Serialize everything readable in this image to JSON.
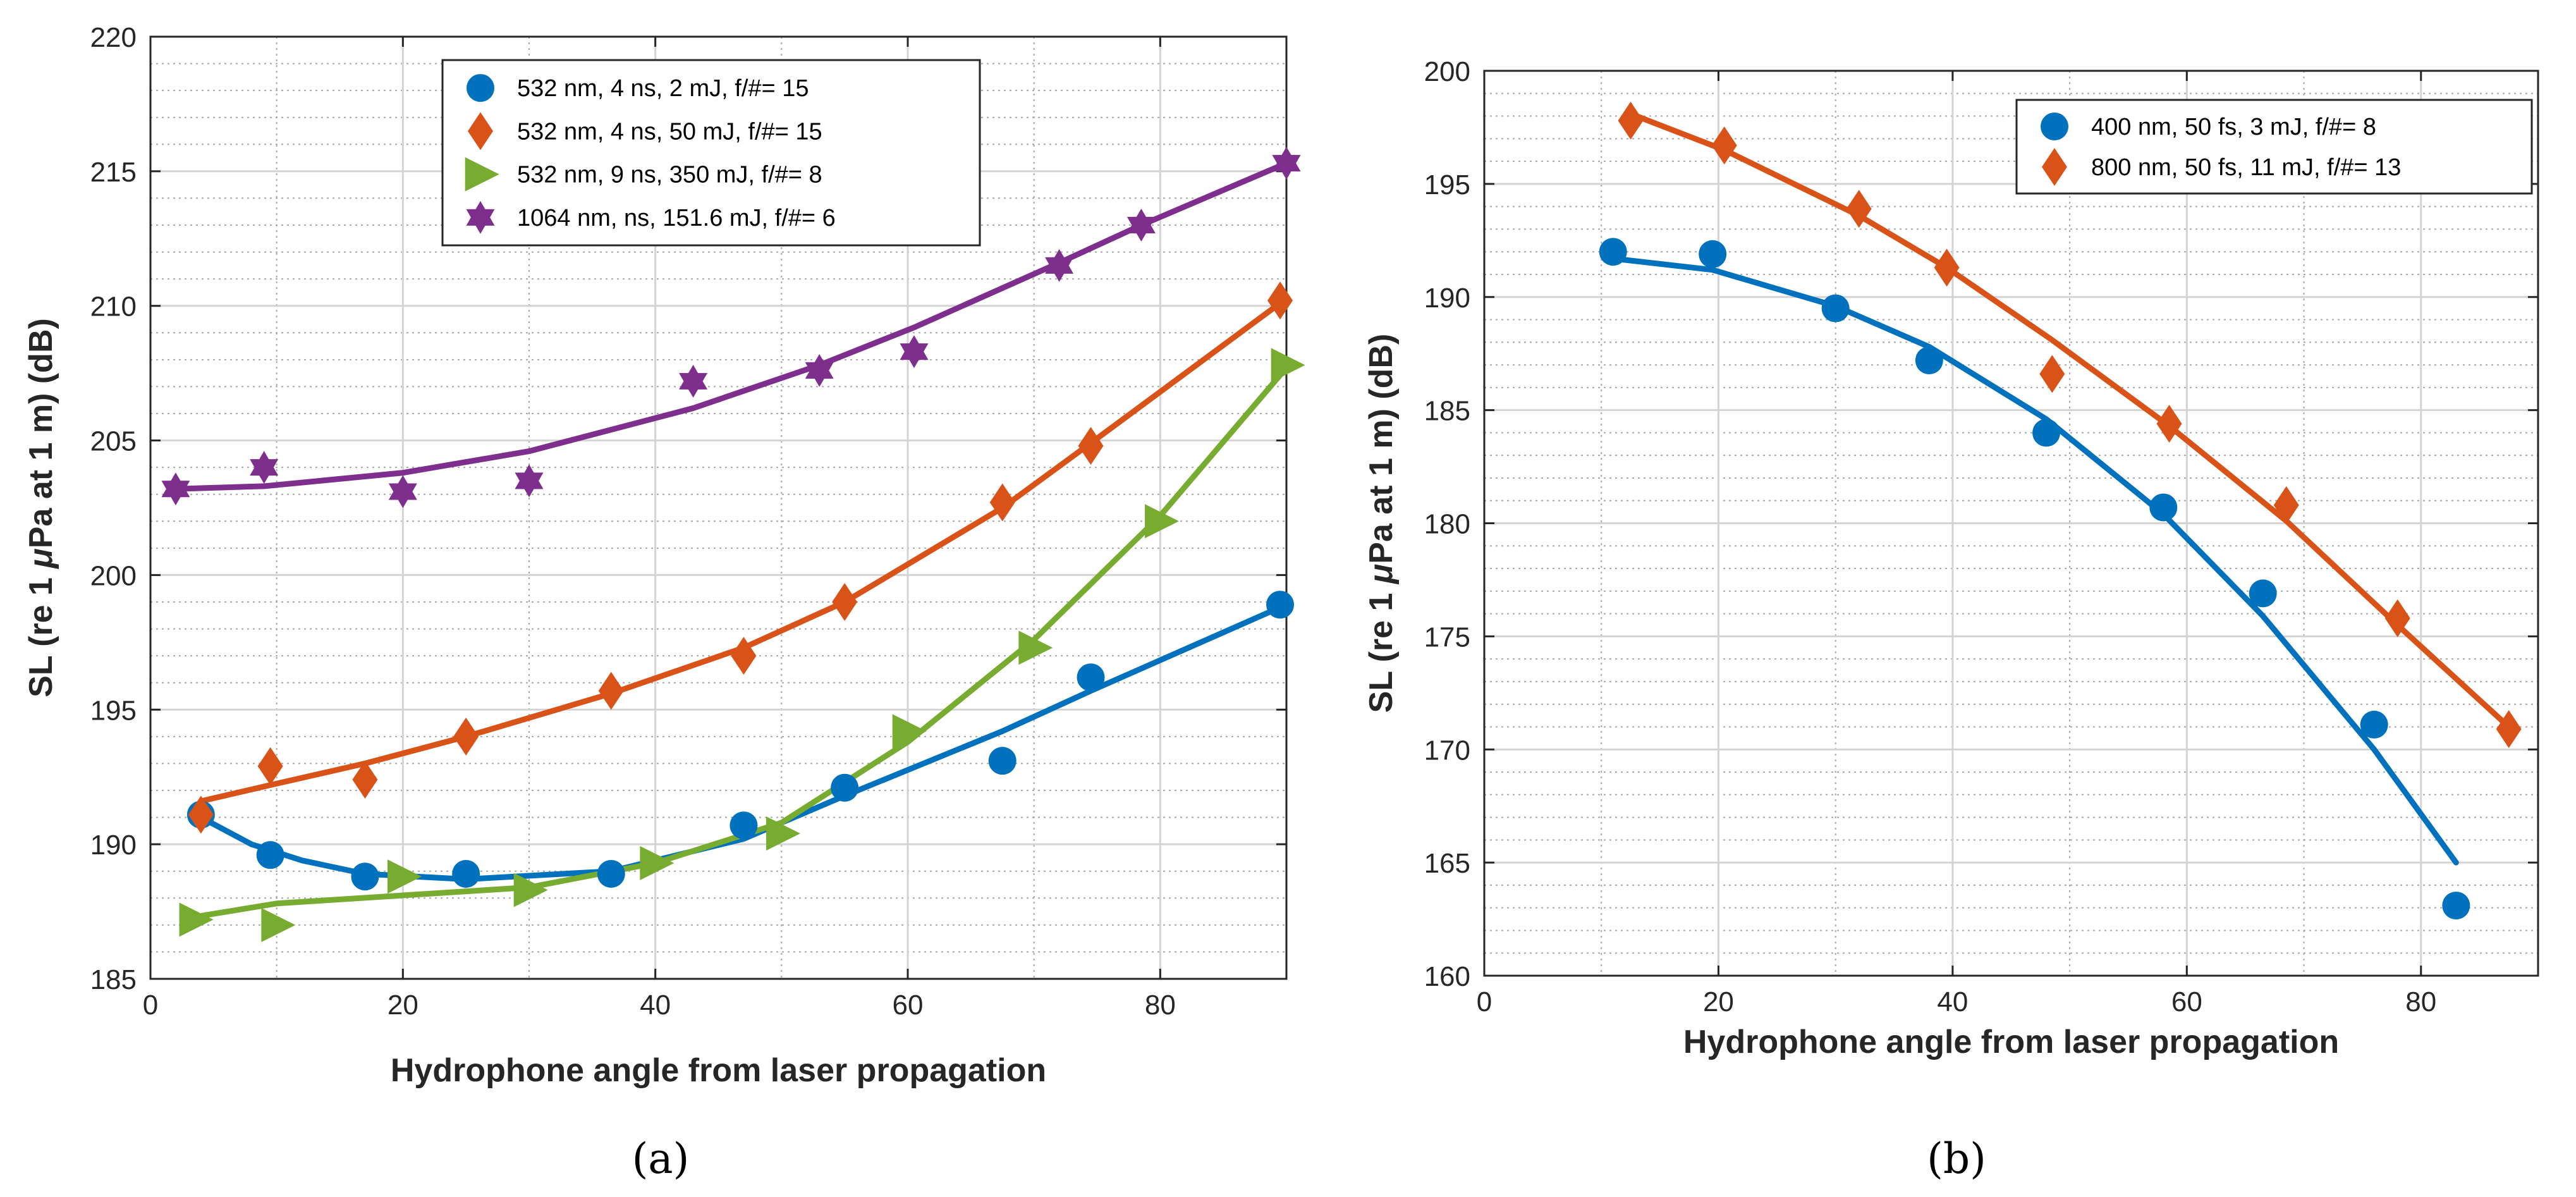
{
  "chart_data": [
    {
      "type": "scatter",
      "panel_label": "(a)",
      "title": "",
      "xlabel": "Hydrophone angle from laser propagation",
      "ylabel_parts": [
        "SL (re 1 ",
        "μ",
        "Pa at 1 m) (dB)"
      ],
      "xlim": [
        0,
        90
      ],
      "ylim": [
        185,
        220
      ],
      "xticks": [
        0,
        20,
        40,
        60,
        80
      ],
      "yticks": [
        185,
        190,
        195,
        200,
        205,
        210,
        215,
        220
      ],
      "grid": true,
      "legend_position": "top-right",
      "series": [
        {
          "name": "532 nm, 4 ns, 2 mJ, f/#= 15",
          "marker": "circle",
          "color": "#0072BD",
          "points": [
            [
              4,
              191.1
            ],
            [
              9.5,
              189.6
            ],
            [
              17,
              188.8
            ],
            [
              25,
              188.9
            ],
            [
              36.5,
              188.9
            ],
            [
              47,
              190.7
            ],
            [
              55,
              192.1
            ],
            [
              67.5,
              193.1
            ],
            [
              74.5,
              196.2
            ],
            [
              89.5,
              198.9
            ]
          ],
          "fit": [
            [
              4,
              191
            ],
            [
              8,
              190
            ],
            [
              12,
              189.4
            ],
            [
              17,
              188.9
            ],
            [
              25,
              188.7
            ],
            [
              36.5,
              189.0
            ],
            [
              47,
              190.2
            ],
            [
              55,
              191.8
            ],
            [
              67.5,
              194.2
            ],
            [
              74.5,
              195.7
            ],
            [
              89.5,
              198.8
            ]
          ]
        },
        {
          "name": "532 nm, 4 ns, 50 mJ, f/#= 15",
          "marker": "diamond",
          "color": "#D95319",
          "points": [
            [
              4,
              191.1
            ],
            [
              9.5,
              192.9
            ],
            [
              17,
              192.4
            ],
            [
              25,
              194.0
            ],
            [
              36.5,
              195.7
            ],
            [
              47,
              197.0
            ],
            [
              55,
              199.0
            ],
            [
              67.5,
              202.7
            ],
            [
              74.5,
              204.8
            ],
            [
              89.5,
              210.2
            ]
          ],
          "fit": [
            [
              4,
              191.6
            ],
            [
              9.5,
              192.2
            ],
            [
              17,
              193.0
            ],
            [
              25,
              194.0
            ],
            [
              36.5,
              195.6
            ],
            [
              47,
              197.3
            ],
            [
              55,
              199.0
            ],
            [
              67.5,
              202.5
            ],
            [
              74.5,
              204.9
            ],
            [
              89.5,
              210.1
            ]
          ]
        },
        {
          "name": "532 nm, 9 ns, 350 mJ, f/#= 8",
          "marker": "triangle-right",
          "color": "#77AC30",
          "points": [
            [
              3.5,
              187.2
            ],
            [
              10,
              187.0
            ],
            [
              20,
              188.8
            ],
            [
              30,
              188.3
            ],
            [
              40,
              189.3
            ],
            [
              50,
              190.4
            ],
            [
              60,
              194.2
            ],
            [
              70,
              197.3
            ],
            [
              80,
              202.0
            ],
            [
              90,
              207.8
            ]
          ],
          "fit": [
            [
              3.5,
              187.3
            ],
            [
              10,
              187.8
            ],
            [
              20,
              188.1
            ],
            [
              30,
              188.4
            ],
            [
              40,
              189.3
            ],
            [
              50,
              190.8
            ],
            [
              60,
              193.8
            ],
            [
              70,
              197.6
            ],
            [
              80,
              202.2
            ],
            [
              90,
              207.7
            ]
          ]
        },
        {
          "name": "1064 nm, ns, 151.6 mJ, f/#= 6",
          "marker": "hexagram",
          "color": "#7E2F8E",
          "points": [
            [
              2,
              203.2
            ],
            [
              9,
              204.0
            ],
            [
              20,
              203.1
            ],
            [
              30,
              203.5
            ],
            [
              43,
              207.2
            ],
            [
              53,
              207.6
            ],
            [
              60.5,
              208.3
            ],
            [
              72,
              211.5
            ],
            [
              78.5,
              213.0
            ],
            [
              90,
              215.3
            ]
          ],
          "fit": [
            [
              2,
              203.2
            ],
            [
              9,
              203.3
            ],
            [
              20,
              203.8
            ],
            [
              30,
              204.6
            ],
            [
              43,
              206.2
            ],
            [
              53,
              207.8
            ],
            [
              60.5,
              209.2
            ],
            [
              72,
              211.6
            ],
            [
              78.5,
              213.0
            ],
            [
              90,
              215.3
            ]
          ]
        }
      ]
    },
    {
      "type": "scatter",
      "panel_label": "(b)",
      "title": "",
      "xlabel": "Hydrophone angle from laser propagation",
      "ylabel_parts": [
        "SL (re 1 ",
        "μ",
        "Pa at 1 m) (dB)"
      ],
      "xlim": [
        0,
        90
      ],
      "ylim": [
        160,
        200
      ],
      "xticks": [
        0,
        20,
        40,
        60,
        80
      ],
      "yticks": [
        160,
        165,
        170,
        175,
        180,
        185,
        190,
        195,
        200
      ],
      "grid": true,
      "legend_position": "top-right",
      "series": [
        {
          "name": "400 nm, 50 fs, 3 mJ, f/#= 8",
          "marker": "circle",
          "color": "#0072BD",
          "points": [
            [
              11,
              192.0
            ],
            [
              19.5,
              191.9
            ],
            [
              30,
              189.5
            ],
            [
              38,
              187.2
            ],
            [
              48,
              184.0
            ],
            [
              58,
              180.7
            ],
            [
              66.5,
              176.9
            ],
            [
              76,
              171.1
            ],
            [
              83,
              163.1
            ]
          ],
          "fit": [
            [
              11,
              191.7
            ],
            [
              19.5,
              191.2
            ],
            [
              30,
              189.6
            ],
            [
              38,
              187.8
            ],
            [
              48,
              184.6
            ],
            [
              58,
              180.4
            ],
            [
              66.5,
              175.9
            ],
            [
              76,
              170.0
            ],
            [
              83,
              165.0
            ]
          ]
        },
        {
          "name": "800 nm, 50 fs, 11 mJ, f/#= 13",
          "marker": "diamond",
          "color": "#D95319",
          "points": [
            [
              12.5,
              197.8
            ],
            [
              20.5,
              196.7
            ],
            [
              32,
              193.9
            ],
            [
              39.5,
              191.3
            ],
            [
              48.5,
              186.6
            ],
            [
              58.5,
              184.4
            ],
            [
              68.5,
              180.8
            ],
            [
              78,
              175.8
            ],
            [
              87.5,
              170.9
            ]
          ],
          "fit": [
            [
              12.5,
              198.1
            ],
            [
              20.5,
              196.5
            ],
            [
              32,
              193.6
            ],
            [
              39.5,
              191.3
            ],
            [
              48.5,
              188.1
            ],
            [
              58.5,
              184.3
            ],
            [
              68.5,
              180.1
            ],
            [
              78,
              175.5
            ],
            [
              87.5,
              171.0
            ]
          ]
        }
      ]
    }
  ]
}
